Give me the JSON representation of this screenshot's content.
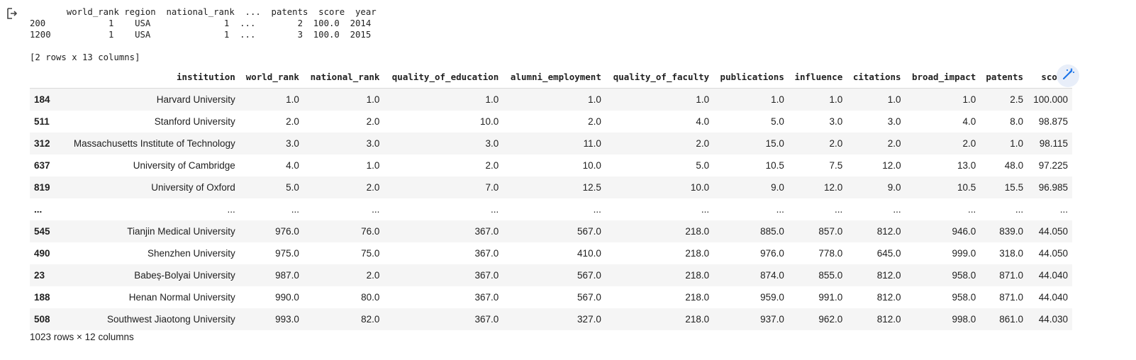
{
  "text_output": {
    "lines": [
      "       world_rank region  national_rank  ...  patents  score  year",
      "200            1    USA              1  ...        2  100.0  2014",
      "1200           1    USA              1  ...        3  100.0  2015",
      "",
      "[2 rows x 13 columns]"
    ]
  },
  "dataframe": {
    "columns": [
      "",
      "institution",
      "world_rank",
      "national_rank",
      "quality_of_education",
      "alumni_employment",
      "quality_of_faculty",
      "publications",
      "influence",
      "citations",
      "broad_impact",
      "patents",
      "score"
    ],
    "rows": [
      [
        "184",
        "Harvard University",
        "1.0",
        "1.0",
        "1.0",
        "1.0",
        "1.0",
        "1.0",
        "1.0",
        "1.0",
        "1.0",
        "2.5",
        "100.000"
      ],
      [
        "511",
        "Stanford University",
        "2.0",
        "2.0",
        "10.0",
        "2.0",
        "4.0",
        "5.0",
        "3.0",
        "3.0",
        "4.0",
        "8.0",
        "98.875"
      ],
      [
        "312",
        "Massachusetts Institute of Technology",
        "3.0",
        "3.0",
        "3.0",
        "11.0",
        "2.0",
        "15.0",
        "2.0",
        "2.0",
        "2.0",
        "1.0",
        "98.115"
      ],
      [
        "637",
        "University of Cambridge",
        "4.0",
        "1.0",
        "2.0",
        "10.0",
        "5.0",
        "10.5",
        "7.5",
        "12.0",
        "13.0",
        "48.0",
        "97.225"
      ],
      [
        "819",
        "University of Oxford",
        "5.0",
        "2.0",
        "7.0",
        "12.5",
        "10.0",
        "9.0",
        "12.0",
        "9.0",
        "10.5",
        "15.5",
        "96.985"
      ],
      [
        "...",
        "...",
        "...",
        "...",
        "...",
        "...",
        "...",
        "...",
        "...",
        "...",
        "...",
        "...",
        "..."
      ],
      [
        "545",
        "Tianjin Medical University",
        "976.0",
        "76.0",
        "367.0",
        "567.0",
        "218.0",
        "885.0",
        "857.0",
        "812.0",
        "946.0",
        "839.0",
        "44.050"
      ],
      [
        "490",
        "Shenzhen University",
        "975.0",
        "75.0",
        "367.0",
        "410.0",
        "218.0",
        "976.0",
        "778.0",
        "645.0",
        "999.0",
        "318.0",
        "44.050"
      ],
      [
        "23",
        "Babeș-Bolyai University",
        "987.0",
        "2.0",
        "367.0",
        "567.0",
        "218.0",
        "874.0",
        "855.0",
        "812.0",
        "958.0",
        "871.0",
        "44.040"
      ],
      [
        "188",
        "Henan Normal University",
        "990.0",
        "80.0",
        "367.0",
        "567.0",
        "218.0",
        "959.0",
        "991.0",
        "812.0",
        "958.0",
        "871.0",
        "44.040"
      ],
      [
        "508",
        "Southwest Jiaotong University",
        "993.0",
        "82.0",
        "367.0",
        "327.0",
        "218.0",
        "937.0",
        "962.0",
        "812.0",
        "998.0",
        "861.0",
        "44.030"
      ]
    ],
    "summary": "1023 rows × 12 columns"
  },
  "icons": {
    "output": "output-arrow-icon",
    "magic": "magic-wand-icon"
  },
  "colors": {
    "accent": "#1a73e8",
    "stripe": "#f5f5f5"
  }
}
